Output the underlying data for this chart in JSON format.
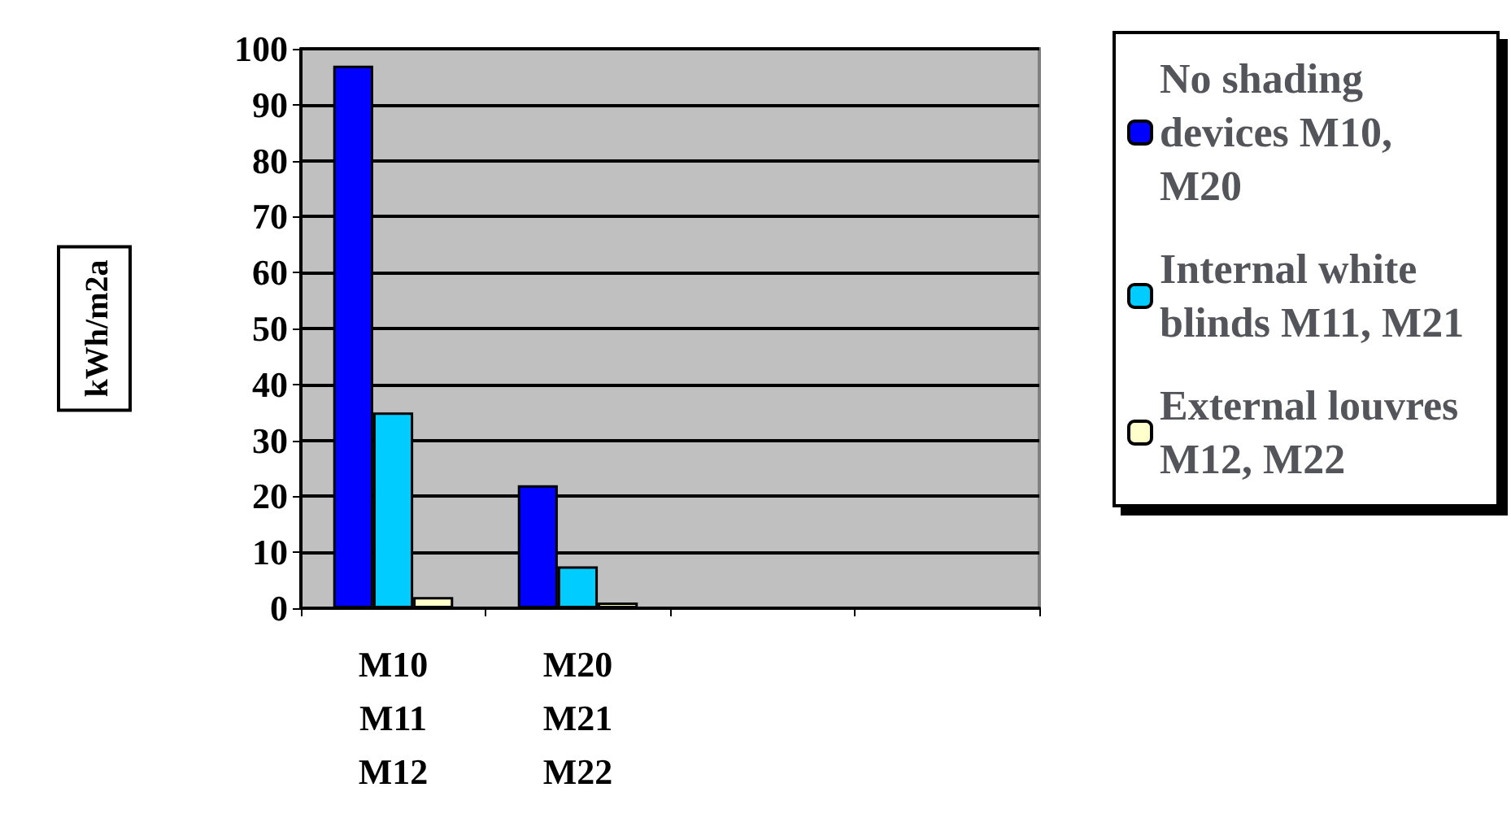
{
  "chart_data": {
    "type": "bar",
    "ylabel": "kWh/m2a",
    "categories": [
      "M10\nM11\nM12",
      "M20\nM21\nM22",
      null,
      null
    ],
    "series": [
      {
        "name": "No shading devices M10, M20",
        "color": "#0000ff",
        "values": [
          97,
          22,
          null,
          null
        ]
      },
      {
        "name": "Internal white blinds M11, M21",
        "color": "#00ccff",
        "values": [
          35,
          7.5,
          null,
          null
        ]
      },
      {
        "name": "External louvres M12, M22",
        "color": "#ffffcc",
        "values": [
          2,
          1,
          null,
          null
        ]
      }
    ],
    "ylim": [
      0,
      100
    ],
    "yticks": [
      0,
      10,
      20,
      30,
      40,
      50,
      60,
      70,
      80,
      90,
      100
    ],
    "grid": "y",
    "legend": "right"
  }
}
